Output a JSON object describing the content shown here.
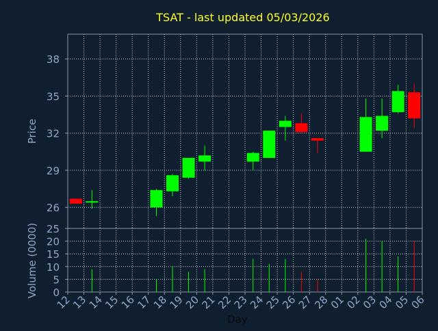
{
  "chart_data": {
    "type": "candlestick",
    "title": "TSAT - last updated 05/03/2026",
    "xlabel": "Day",
    "price_ylabel": "Price",
    "volume_ylabel": "Volume (0000)",
    "grid": true,
    "colors": {
      "background": "#0f1f30",
      "axis": "#8899aa",
      "grid": "#c8d0d8",
      "title": "#ffff22",
      "tick_label": "#8fa7c8",
      "up": "#00ff00",
      "down": "#ff0000"
    },
    "x_ticks": [
      "12",
      "13",
      "14",
      "15",
      "16",
      "17",
      "18",
      "19",
      "20",
      "21",
      "22",
      "23",
      "24",
      "25",
      "26",
      "27",
      "28",
      "01",
      "02",
      "03",
      "04",
      "05",
      "06"
    ],
    "price_axis": {
      "ylim": [
        24.3,
        40.0
      ],
      "ticks": [
        26,
        29,
        32,
        35,
        38
      ],
      "tick_labels": [
        "26",
        "29",
        "32",
        "35",
        "38"
      ]
    },
    "volume_axis": {
      "ylim": [
        0,
        25
      ],
      "ticks": [
        0,
        5,
        10,
        15,
        20,
        25
      ],
      "tick_labels": [
        "0",
        "5",
        "10",
        "15",
        "20",
        "25"
      ]
    },
    "candles": [
      {
        "day": "12",
        "open": 26.7,
        "high": 26.7,
        "low": 26.3,
        "close": 26.3,
        "volume": 0
      },
      {
        "day": "13",
        "open": 26.4,
        "high": 27.4,
        "low": 25.9,
        "close": 26.5,
        "volume": 9
      },
      {
        "day": "17",
        "open": 26.0,
        "high": 27.5,
        "low": 25.3,
        "close": 27.4,
        "volume": 5
      },
      {
        "day": "18",
        "open": 27.3,
        "high": 28.7,
        "low": 26.9,
        "close": 28.6,
        "volume": 10
      },
      {
        "day": "19",
        "open": 28.4,
        "high": 30.0,
        "low": 28.3,
        "close": 30.0,
        "volume": 8
      },
      {
        "day": "20",
        "open": 29.7,
        "high": 31.0,
        "low": 29.0,
        "close": 30.2,
        "volume": 9
      },
      {
        "day": "23",
        "open": 29.7,
        "high": 30.5,
        "low": 29.0,
        "close": 30.4,
        "volume": 13
      },
      {
        "day": "24",
        "open": 30.0,
        "high": 32.2,
        "low": 30.0,
        "close": 32.2,
        "volume": 11
      },
      {
        "day": "25",
        "open": 32.5,
        "high": 33.4,
        "low": 31.4,
        "close": 33.0,
        "volume": 13
      },
      {
        "day": "26",
        "open": 32.8,
        "high": 33.6,
        "low": 32.0,
        "close": 32.1,
        "volume": 8
      },
      {
        "day": "27",
        "open": 31.6,
        "high": 31.6,
        "low": 30.4,
        "close": 31.4,
        "volume": 5
      },
      {
        "day": "02",
        "open": 30.5,
        "high": 34.8,
        "low": 30.5,
        "close": 33.3,
        "volume": 21
      },
      {
        "day": "03",
        "open": 32.2,
        "high": 34.8,
        "low": 31.6,
        "close": 33.4,
        "volume": 20
      },
      {
        "day": "04",
        "open": 33.7,
        "high": 35.9,
        "low": 33.6,
        "close": 35.4,
        "volume": 14
      },
      {
        "day": "05",
        "open": 35.3,
        "high": 36.0,
        "low": 32.4,
        "close": 33.2,
        "volume": 20
      }
    ]
  }
}
